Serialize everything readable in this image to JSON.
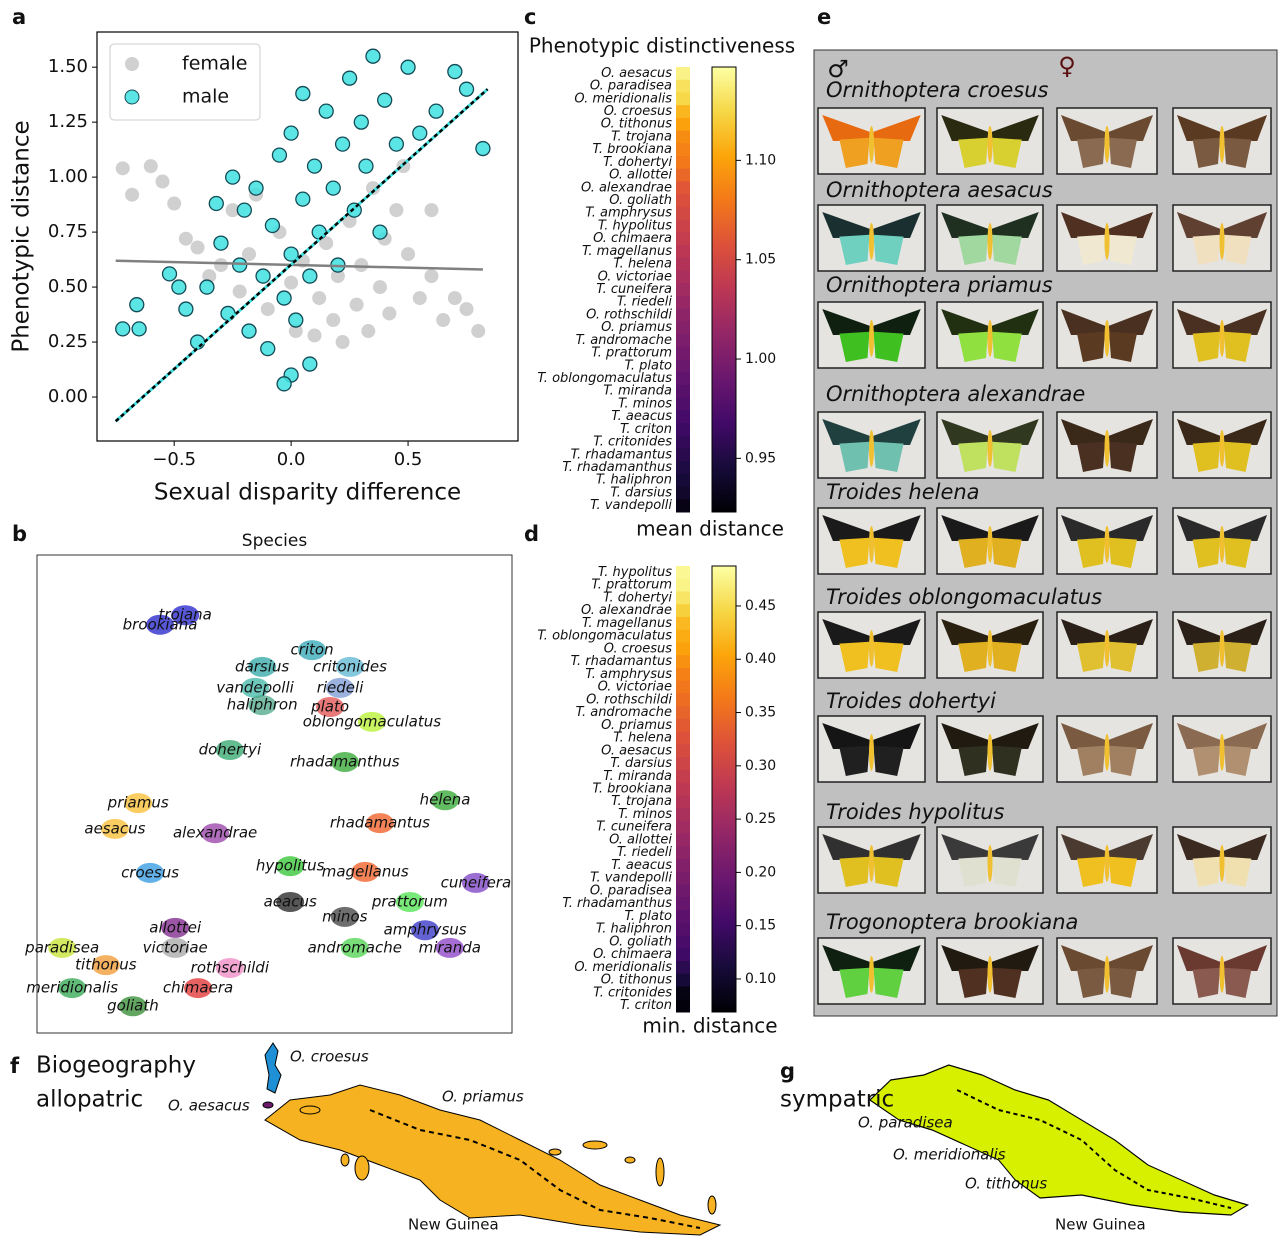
{
  "panel_labels": [
    "a",
    "b",
    "c",
    "d",
    "e",
    "f",
    "g"
  ],
  "chart_data": [
    {
      "type": "scatter",
      "x_label": "Sexual disparity difference",
      "y_label": "Phenotypic distance",
      "xlim": [
        -0.83,
        0.97
      ],
      "ylim": [
        -0.2,
        1.66
      ],
      "xticks": [
        {
          "value": -0.5,
          "label": "−0.5"
        },
        {
          "value": 0,
          "label": "0.0"
        },
        0.5
      ],
      "yticks": [
        {
          "value": 0,
          "label": "0.00"
        },
        0.25,
        {
          "value": 0.5,
          "label": "0.50"
        },
        0.75,
        {
          "value": 1,
          "label": "1.00"
        },
        1.25,
        {
          "value": 1.5,
          "label": "1.50"
        }
      ],
      "legend": "upper left",
      "series": [
        {
          "name": "female",
          "color": "#a9a9a9",
          "x": [
            -0.72,
            -0.68,
            -0.6,
            -0.55,
            -0.5,
            -0.45,
            -0.4,
            -0.35,
            -0.3,
            -0.25,
            -0.22,
            -0.18,
            -0.15,
            -0.1,
            -0.05,
            0,
            0.02,
            0.05,
            0.1,
            0.12,
            0.15,
            0.18,
            0.2,
            0.22,
            0.25,
            0.28,
            0.3,
            0.33,
            0.35,
            0.38,
            0.4,
            0.42,
            0.45,
            0.5,
            0.55,
            0.6,
            0.65,
            0.7,
            0.75,
            0.8,
            0.6,
            0.48
          ],
          "y": [
            1.04,
            0.92,
            1.05,
            0.98,
            0.88,
            0.72,
            0.68,
            0.55,
            0.6,
            0.85,
            0.48,
            0.65,
            0.92,
            0.4,
            0.75,
            0.52,
            0.3,
            0.62,
            0.28,
            0.45,
            0.7,
            0.35,
            0.55,
            0.25,
            0.8,
            0.42,
            0.6,
            0.3,
            0.95,
            0.5,
            0.72,
            0.38,
            0.85,
            0.65,
            0.45,
            0.55,
            0.35,
            0.45,
            0.4,
            0.3,
            0.85,
            1.05
          ]
        },
        {
          "name": "male",
          "color": "#40e0e0",
          "x": [
            -0.72,
            -0.66,
            -0.65,
            -0.52,
            -0.48,
            -0.45,
            -0.4,
            -0.36,
            -0.32,
            -0.3,
            -0.27,
            -0.25,
            -0.22,
            -0.2,
            -0.18,
            -0.15,
            -0.12,
            -0.1,
            -0.08,
            -0.05,
            -0.03,
            0,
            0,
            0.02,
            0.05,
            0.05,
            0.08,
            0.1,
            0.12,
            0.15,
            0.18,
            0.2,
            0.22,
            0.25,
            0.27,
            0.3,
            0.32,
            0.35,
            0.38,
            0.4,
            0.45,
            0.5,
            0.55,
            0.62,
            0.7,
            0.75,
            0.82,
            0,
            -0.03,
            0.08
          ],
          "y": [
            0.31,
            0.42,
            0.31,
            0.56,
            0.5,
            0.4,
            0.25,
            0.5,
            0.88,
            0.7,
            0.38,
            1.0,
            0.6,
            0.85,
            0.3,
            0.95,
            0.55,
            0.22,
            0.78,
            1.1,
            0.45,
            0.65,
            1.2,
            0.35,
            0.9,
            1.38,
            0.55,
            1.05,
            0.75,
            1.3,
            0.95,
            0.6,
            1.15,
            1.45,
            0.85,
            1.25,
            1.05,
            1.55,
            0.75,
            1.35,
            1.15,
            1.5,
            1.2,
            1.3,
            1.48,
            1.4,
            1.13,
            0.1,
            0.06,
            0.15
          ]
        }
      ],
      "trend_lines": [
        {
          "color": "#808080",
          "dash": false,
          "x": [
            -0.75,
            0.82
          ],
          "y": [
            0.62,
            0.58
          ]
        },
        {
          "color": "#000000",
          "dash": true,
          "x": [
            -0.75,
            0.84
          ],
          "y": [
            -0.11,
            1.4
          ]
        }
      ]
    },
    {
      "type": "embedding",
      "title": "Species",
      "xlim": [
        0,
        100
      ],
      "ylim": [
        0,
        100
      ],
      "clusters": [
        {
          "name": "brookiana",
          "color": "#1010c8",
          "x": 25.9,
          "y": 85.4
        },
        {
          "name": "trojana",
          "color": "#1010c8",
          "x": 31.2,
          "y": 87.4
        },
        {
          "name": "criton",
          "color": "#20a0b0",
          "x": 57.9,
          "y": 80.1
        },
        {
          "name": "critonides",
          "color": "#50b0d0",
          "x": 65.9,
          "y": 76.6
        },
        {
          "name": "darsius",
          "color": "#20a0a0",
          "x": 47.4,
          "y": 76.6
        },
        {
          "name": "riedeli",
          "color": "#7090d0",
          "x": 63.8,
          "y": 72.2
        },
        {
          "name": "vandepolli",
          "color": "#30b0a0",
          "x": 45.9,
          "y": 72.2
        },
        {
          "name": "plato",
          "color": "#e04040",
          "x": 61.7,
          "y": 68.2
        },
        {
          "name": "haliphron",
          "color": "#40a080",
          "x": 47.4,
          "y": 68.6
        },
        {
          "name": "oblongomaculatus",
          "color": "#b0f020",
          "x": 70.5,
          "y": 65.1
        },
        {
          "name": "dohertyi",
          "color": "#20a060",
          "x": 40.6,
          "y": 59.2
        },
        {
          "name": "rhadamanthus",
          "color": "#20a020",
          "x": 64.8,
          "y": 56.7
        },
        {
          "name": "helena",
          "color": "#20a020",
          "x": 85.9,
          "y": 48.7
        },
        {
          "name": "priamus",
          "color": "#f8b820",
          "x": 21.3,
          "y": 48.1
        },
        {
          "name": "aesacus",
          "color": "#f8b820",
          "x": 16.4,
          "y": 42.7
        },
        {
          "name": "alexandrae",
          "color": "#9030a0",
          "x": 37.5,
          "y": 41.8
        },
        {
          "name": "rhadamantus",
          "color": "#f05010",
          "x": 72.2,
          "y": 43.9
        },
        {
          "name": "croesus",
          "color": "#2090e0",
          "x": 23.8,
          "y": 33.5
        },
        {
          "name": "hypolitus",
          "color": "#20c020",
          "x": 53.3,
          "y": 34.9
        },
        {
          "name": "magellanus",
          "color": "#f05010",
          "x": 69.1,
          "y": 33.7
        },
        {
          "name": "aeacus",
          "color": "#101010",
          "x": 53.3,
          "y": 27.4
        },
        {
          "name": "prattorum",
          "color": "#40e040",
          "x": 78.5,
          "y": 27.4
        },
        {
          "name": "minos",
          "color": "#303030",
          "x": 64.8,
          "y": 24.3
        },
        {
          "name": "cuneifera",
          "color": "#7030c0",
          "x": 92.4,
          "y": 31.4
        },
        {
          "name": "amphrysus",
          "color": "#2020c0",
          "x": 81.7,
          "y": 21.5
        },
        {
          "name": "andromache",
          "color": "#40d040",
          "x": 66.9,
          "y": 17.8
        },
        {
          "name": "miranda",
          "color": "#8030c0",
          "x": 86.9,
          "y": 17.8
        },
        {
          "name": "allottei",
          "color": "#701080",
          "x": 29.1,
          "y": 22.0
        },
        {
          "name": "victoriae",
          "color": "#a0a0a0",
          "x": 29.1,
          "y": 17.8
        },
        {
          "name": "paradisea",
          "color": "#c0e020",
          "x": 5.3,
          "y": 17.8
        },
        {
          "name": "tithonus",
          "color": "#f09020",
          "x": 14.5,
          "y": 14.2
        },
        {
          "name": "rothschildi",
          "color": "#f080c0",
          "x": 40.6,
          "y": 13.6
        },
        {
          "name": "meridionalis",
          "color": "#20a040",
          "x": 7.4,
          "y": 9.4
        },
        {
          "name": "chimaera",
          "color": "#e02020",
          "x": 33.9,
          "y": 9.4
        },
        {
          "name": "goliath",
          "color": "#208020",
          "x": 20.2,
          "y": 5.6
        }
      ]
    },
    {
      "type": "heatmap",
      "title": "Phenotypic distinctiveness",
      "colormap": "inferno",
      "colorbar_label": "mean distance",
      "clim": [
        0.923,
        1.147
      ],
      "colorbar_ticks": [
        0.95,
        {
          "value": 1,
          "label": "1.00"
        },
        1.05,
        {
          "value": 1.1,
          "label": "1.10"
        }
      ],
      "categories": [
        "O. aesacus",
        "O. paradisea",
        "O. meridionalis",
        "O. croesus",
        "O. tithonus",
        "T. trojana",
        "T. brookiana",
        "T. dohertyi",
        "O. allottei",
        "O. alexandrae",
        "O. goliath",
        "T. amphrysus",
        "T. hypolitus",
        "O. chimaera",
        "T. magellanus",
        "T. helena",
        "O. victoriae",
        "T. cuneifera",
        "T. riedeli",
        "O. rothschildi",
        "O. priamus",
        "T. andromache",
        "T. prattorum",
        "T. plato",
        "T. oblongomaculatus",
        "T. miranda",
        "T. minos",
        "T. aeacus",
        "T. criton",
        "T. critonides",
        "T. rhadamantus",
        "T. rhadamanthus",
        "T. haliphron",
        "T. darsius",
        "T. vandepolli"
      ],
      "values": [
        1.14,
        1.13,
        1.125,
        1.11,
        1.1,
        1.09,
        1.085,
        1.08,
        1.07,
        1.06,
        1.055,
        1.05,
        1.045,
        1.04,
        1.035,
        1.03,
        1.025,
        1.02,
        1.015,
        1.01,
        1.005,
        1.0,
        0.995,
        0.99,
        0.985,
        0.98,
        0.975,
        0.97,
        0.965,
        0.96,
        0.955,
        0.95,
        0.945,
        0.94,
        0.93
      ]
    },
    {
      "type": "heatmap",
      "colormap": "inferno",
      "colorbar_label": "min. distance",
      "clim": [
        0.069,
        0.4875
      ],
      "colorbar_ticks": [
        {
          "value": 0.1,
          "label": "0.10"
        },
        0.15,
        {
          "value": 0.2,
          "label": "0.20"
        },
        0.25,
        {
          "value": 0.3,
          "label": "0.30"
        },
        0.35,
        {
          "value": 0.4,
          "label": "0.40"
        },
        0.45
      ],
      "categories": [
        "T. hypolitus",
        "T. prattorum",
        "T. dohertyi",
        "O. alexandrae",
        "T. magellanus",
        "T. oblongomaculatus",
        "O. croesus",
        "T. rhadamantus",
        "T. amphrysus",
        "O. victoriae",
        "O. rothschildi",
        "T. andromache",
        "O. priamus",
        "T. helena",
        "O. aesacus",
        "T. darsius",
        "T. miranda",
        "T. brookiana",
        "T. trojana",
        "T. minos",
        "T. cuneifera",
        "O. allottei",
        "T. riedeli",
        "T. aeacus",
        "T. vandepolli",
        "O. paradisea",
        "T. rhadamanthus",
        "T. plato",
        "T. haliphron",
        "O. goliath",
        "O. chimaera",
        "O. meridionalis",
        "O. tithonus",
        "T. critonides",
        "T. criton"
      ],
      "values": [
        0.48,
        0.475,
        0.46,
        0.44,
        0.42,
        0.41,
        0.4,
        0.385,
        0.37,
        0.36,
        0.35,
        0.34,
        0.33,
        0.32,
        0.31,
        0.3,
        0.29,
        0.28,
        0.27,
        0.26,
        0.25,
        0.24,
        0.23,
        0.22,
        0.21,
        0.2,
        0.19,
        0.18,
        0.17,
        0.16,
        0.15,
        0.13,
        0.11,
        0.08,
        0.075
      ]
    }
  ],
  "gallery": {
    "male_symbol": "♂",
    "female_symbol": "♀",
    "species": [
      "Ornithoptera croesus",
      "Ornithoptera aesacus",
      "Ornithoptera priamus",
      "Ornithoptera alexandrae",
      "Troides helena",
      "Troides oblongomaculatus",
      "Troides dohertyi",
      "Troides hypolitus",
      "Trogonoptera brookiana"
    ]
  },
  "maps": {
    "allopatric": {
      "heading": "Biogeography",
      "subheading": "allopatric",
      "labels": [
        "O. croesus",
        "O. aesacus",
        "O. priamus"
      ],
      "region": "New Guinea"
    },
    "sympatric": {
      "heading": "sympatric",
      "labels": [
        "O. paradisea",
        "O. meridionalis",
        "O. tithonus"
      ],
      "region": "New Guinea"
    }
  }
}
